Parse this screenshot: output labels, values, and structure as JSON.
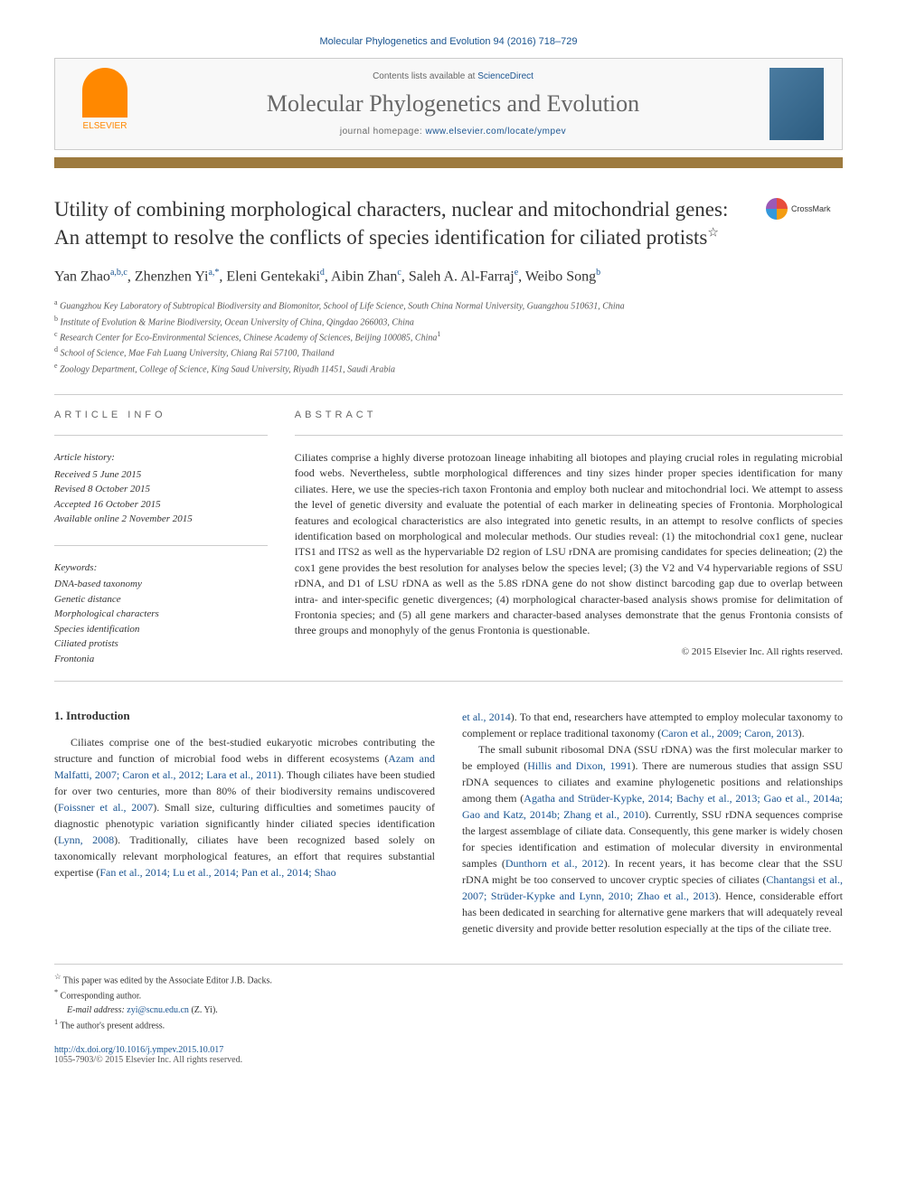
{
  "citation": "Molecular Phylogenetics and Evolution 94 (2016) 718–729",
  "header": {
    "contents_pre": "Contents lists available at ",
    "contents_link": "ScienceDirect",
    "journal_name": "Molecular Phylogenetics and Evolution",
    "homepage_pre": "journal homepage: ",
    "homepage_link": "www.elsevier.com/locate/ympev",
    "publisher": "ELSEVIER"
  },
  "accent_color": "#9d7a3e",
  "crossmark": "CrossMark",
  "title": "Utility of combining morphological characters, nuclear and mitochondrial genes: An attempt to resolve the conflicts of species identification for ciliated protists",
  "title_note": "☆",
  "authors": [
    {
      "name": "Yan Zhao",
      "aff": "a,b,c"
    },
    {
      "name": "Zhenzhen Yi",
      "aff": "a,*"
    },
    {
      "name": "Eleni Gentekaki",
      "aff": "d"
    },
    {
      "name": "Aibin Zhan",
      "aff": "c"
    },
    {
      "name": "Saleh A. Al-Farraj",
      "aff": "e"
    },
    {
      "name": "Weibo Song",
      "aff": "b"
    }
  ],
  "affiliations": [
    {
      "sup": "a",
      "text": "Guangzhou Key Laboratory of Subtropical Biodiversity and Biomonitor, School of Life Science, South China Normal University, Guangzhou 510631, China"
    },
    {
      "sup": "b",
      "text": "Institute of Evolution & Marine Biodiversity, Ocean University of China, Qingdao 266003, China"
    },
    {
      "sup": "c",
      "text": "Research Center for Eco-Environmental Sciences, Chinese Academy of Sciences, Beijing 100085, China",
      "extra": "1"
    },
    {
      "sup": "d",
      "text": "School of Science, Mae Fah Luang University, Chiang Rai 57100, Thailand"
    },
    {
      "sup": "e",
      "text": "Zoology Department, College of Science, King Saud University, Riyadh 11451, Saudi Arabia"
    }
  ],
  "info": {
    "label": "ARTICLE INFO",
    "history_label": "Article history:",
    "history": [
      "Received 5 June 2015",
      "Revised 8 October 2015",
      "Accepted 16 October 2015",
      "Available online 2 November 2015"
    ],
    "keywords_label": "Keywords:",
    "keywords": [
      "DNA-based taxonomy",
      "Genetic distance",
      "Morphological characters",
      "Species identification",
      "Ciliated protists",
      "Frontonia"
    ]
  },
  "abstract": {
    "label": "ABSTRACT",
    "text": "Ciliates comprise a highly diverse protozoan lineage inhabiting all biotopes and playing crucial roles in regulating microbial food webs. Nevertheless, subtle morphological differences and tiny sizes hinder proper species identification for many ciliates. Here, we use the species-rich taxon Frontonia and employ both nuclear and mitochondrial loci. We attempt to assess the level of genetic diversity and evaluate the potential of each marker in delineating species of Frontonia. Morphological features and ecological characteristics are also integrated into genetic results, in an attempt to resolve conflicts of species identification based on morphological and molecular methods. Our studies reveal: (1) the mitochondrial cox1 gene, nuclear ITS1 and ITS2 as well as the hypervariable D2 region of LSU rDNA are promising candidates for species delineation; (2) the cox1 gene provides the best resolution for analyses below the species level; (3) the V2 and V4 hypervariable regions of SSU rDNA, and D1 of LSU rDNA as well as the 5.8S rDNA gene do not show distinct barcoding gap due to overlap between intra- and inter-specific genetic divergences; (4) morphological character-based analysis shows promise for delimitation of Frontonia species; and (5) all gene markers and character-based analyses demonstrate that the genus Frontonia consists of three groups and monophyly of the genus Frontonia is questionable.",
    "copyright": "© 2015 Elsevier Inc. All rights reserved."
  },
  "intro": {
    "heading": "1. Introduction",
    "p1_pre": "Ciliates comprise one of the best-studied eukaryotic microbes contributing the structure and function of microbial food webs in different ecosystems (",
    "p1_ref1": "Azam and Malfatti, 2007; Caron et al., 2012; Lara et al., 2011",
    "p1_mid1": "). Though ciliates have been studied for over two centuries, more than 80% of their biodiversity remains undiscovered (",
    "p1_ref2": "Foissner et al., 2007",
    "p1_mid2": "). Small size, culturing difficulties and sometimes paucity of diagnostic phenotypic variation significantly hinder ciliated species identification (",
    "p1_ref3": "Lynn, 2008",
    "p1_mid3": "). Traditionally, ciliates have been recognized based solely on taxonomically relevant morphological features, an effort that requires substantial expertise (",
    "p1_ref4": "Fan et al., 2014; Lu et al., 2014; Pan et al., 2014; Shao",
    "p2_ref1": "et al., 2014",
    "p2_mid1": "). To that end, researchers have attempted to employ molecular taxonomy to complement or replace traditional taxonomy (",
    "p2_ref2": "Caron et al., 2009; Caron, 2013",
    "p2_mid2": ").",
    "p3_pre": "The small subunit ribosomal DNA (SSU rDNA) was the first molecular marker to be employed (",
    "p3_ref1": "Hillis and Dixon, 1991",
    "p3_mid1": "). There are numerous studies that assign SSU rDNA sequences to ciliates and examine phylogenetic positions and relationships among them (",
    "p3_ref2": "Agatha and Strüder-Kypke, 2014; Bachy et al., 2013; Gao et al., 2014a; Gao and Katz, 2014b; Zhang et al., 2010",
    "p3_mid2": "). Currently, SSU rDNA sequences comprise the largest assemblage of ciliate data. Consequently, this gene marker is widely chosen for species identification and estimation of molecular diversity in environmental samples (",
    "p3_ref3": "Dunthorn et al., 2012",
    "p3_mid3": "). In recent years, it has become clear that the SSU rDNA might be too conserved to uncover cryptic species of ciliates (",
    "p3_ref4": "Chantangsi et al., 2007; Strüder-Kypke and Lynn, 2010; Zhao et al., 2013",
    "p3_mid4": "). Hence, considerable effort has been dedicated in searching for alternative gene markers that will adequately reveal genetic diversity and provide better resolution especially at the tips of the ciliate tree."
  },
  "footnotes": {
    "note1_sup": "☆",
    "note1": " This paper was edited by the Associate Editor J.B. Dacks.",
    "corr_sup": "*",
    "corr": " Corresponding author.",
    "email_label": "E-mail address: ",
    "email": "zyi@scnu.edu.cn",
    "email_name": " (Z. Yi).",
    "note2_sup": "1",
    "note2": " The author's present address."
  },
  "footer": {
    "doi": "http://dx.doi.org/10.1016/j.ympev.2015.10.017",
    "issn": "1055-7903/© 2015 Elsevier Inc. All rights reserved."
  },
  "colors": {
    "link": "#1a5490",
    "accent": "#9d7a3e",
    "elsevier": "#ff8800"
  },
  "fonts": {
    "body": "Georgia, Times New Roman, serif",
    "sans": "Arial, sans-serif",
    "title_size": 23,
    "journal_size": 26,
    "body_size": 12,
    "small_size": 11,
    "tiny_size": 10
  }
}
